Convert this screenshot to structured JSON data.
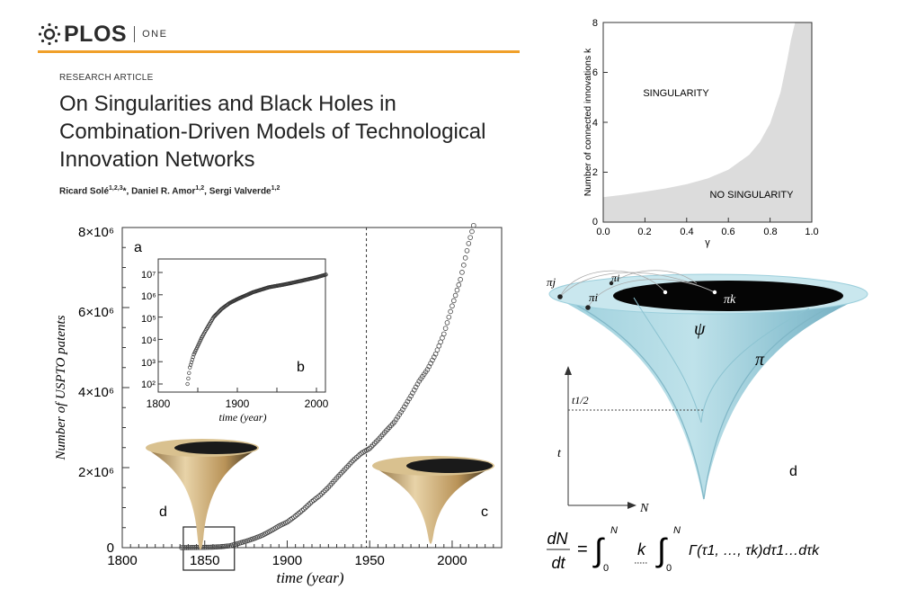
{
  "header": {
    "journal_name": "PLOS",
    "journal_sub": "ONE",
    "article_type": "RESEARCH ARTICLE",
    "title": "On Singularities and Black Holes in Combination-Driven Models of Technological Innovation Networks",
    "authors": [
      {
        "name": "Ricard Solé",
        "sup": "1,2,3",
        "mark": "*"
      },
      {
        "name": "Daniel R. Amor",
        "sup": "1,2"
      },
      {
        "name": "Sergi Valverde",
        "sup": "1,2"
      }
    ],
    "colors": {
      "accent": "#f0a02a"
    }
  },
  "chart_data": [
    {
      "type": "scatter",
      "panel": "main",
      "xlabel": "time (year)",
      "ylabel": "Number of USPTO patents",
      "xlim": [
        1800,
        2030
      ],
      "ylim": [
        0,
        8000000
      ],
      "x_ticks": [
        "1800",
        "1850",
        "1900",
        "1950",
        "2000"
      ],
      "y_ticks": [
        "0",
        "2×10⁶",
        "4×10⁶",
        "6×10⁶",
        "8×10⁶"
      ],
      "vline_x": 1948,
      "highlight_box_x": [
        1837,
        1868
      ],
      "panel_labels": [
        "a",
        "d",
        "c"
      ],
      "x": [
        1836,
        1840,
        1845,
        1850,
        1855,
        1860,
        1865,
        1870,
        1875,
        1880,
        1885,
        1890,
        1895,
        1900,
        1905,
        1910,
        1915,
        1920,
        1925,
        1930,
        1935,
        1940,
        1945,
        1950,
        1955,
        1960,
        1965,
        1970,
        1975,
        1980,
        1985,
        1990,
        1995,
        2000,
        2005,
        2010,
        2013
      ],
      "y": [
        0,
        2000,
        5000,
        8000,
        13000,
        25000,
        45000,
        100000,
        160000,
        230000,
        310000,
        420000,
        540000,
        640000,
        790000,
        960000,
        1150000,
        1310000,
        1510000,
        1740000,
        1960000,
        2180000,
        2360000,
        2480000,
        2690000,
        2920000,
        3140000,
        3450000,
        3790000,
        4160000,
        4450000,
        4840000,
        5340000,
        6040000,
        6700000,
        7600000,
        8050000
      ]
    },
    {
      "type": "scatter",
      "panel": "inset",
      "xlabel": "time (year)",
      "ylabel": "",
      "y_scale": "log",
      "xlim": [
        1790,
        2015
      ],
      "ylim": [
        100,
        10000000
      ],
      "x_ticks": [
        "1800",
        "1900",
        "2000"
      ],
      "y_ticks": [
        "10²",
        "10³",
        "10⁴",
        "10⁵",
        "10⁶",
        "10⁷"
      ],
      "panel_label": "b",
      "x": [
        1837,
        1840,
        1845,
        1850,
        1855,
        1860,
        1870,
        1880,
        1890,
        1900,
        1920,
        1940,
        1960,
        1980,
        2000,
        2012
      ],
      "y": [
        100,
        550,
        2100,
        5000,
        12000,
        25000,
        100000,
        230000,
        420000,
        640000,
        1310000,
        2180000,
        2920000,
        4160000,
        6040000,
        8050000
      ]
    },
    {
      "type": "area",
      "panel": "phase",
      "xlabel": "γ",
      "ylabel": "Number of connected innovations k",
      "xlim": [
        0,
        1
      ],
      "ylim": [
        0,
        8
      ],
      "x_ticks": [
        "0.0",
        "0.2",
        "0.4",
        "0.6",
        "0.8",
        "1.0"
      ],
      "y_ticks": [
        "0",
        "2",
        "4",
        "6",
        "8"
      ],
      "region_labels": [
        "SINGULARITY",
        "NO SINGULARITY"
      ],
      "boundary_x": [
        0,
        0.1,
        0.2,
        0.3,
        0.4,
        0.5,
        0.6,
        0.7,
        0.75,
        0.8,
        0.85,
        0.88,
        0.9,
        0.92
      ],
      "boundary_k": [
        1.0,
        1.1,
        1.22,
        1.35,
        1.52,
        1.75,
        2.1,
        2.7,
        3.2,
        3.95,
        5.2,
        6.4,
        7.3,
        8.0
      ]
    }
  ],
  "funnel_diagram": {
    "node_labels": [
      "πj",
      "πi",
      "πi",
      "πk"
    ],
    "region_labels": [
      "ψ",
      "π"
    ],
    "axis_t": "t",
    "axis_n": "N",
    "half_time": "t1/2",
    "panel_label": "d"
  },
  "equation": {
    "lhs_num": "dN",
    "lhs_den": "dt",
    "int_upper": "N",
    "int_lower": "0",
    "k_label": "k",
    "integrand": "Γ(τ1, …, τk)dτ1…dτk"
  }
}
